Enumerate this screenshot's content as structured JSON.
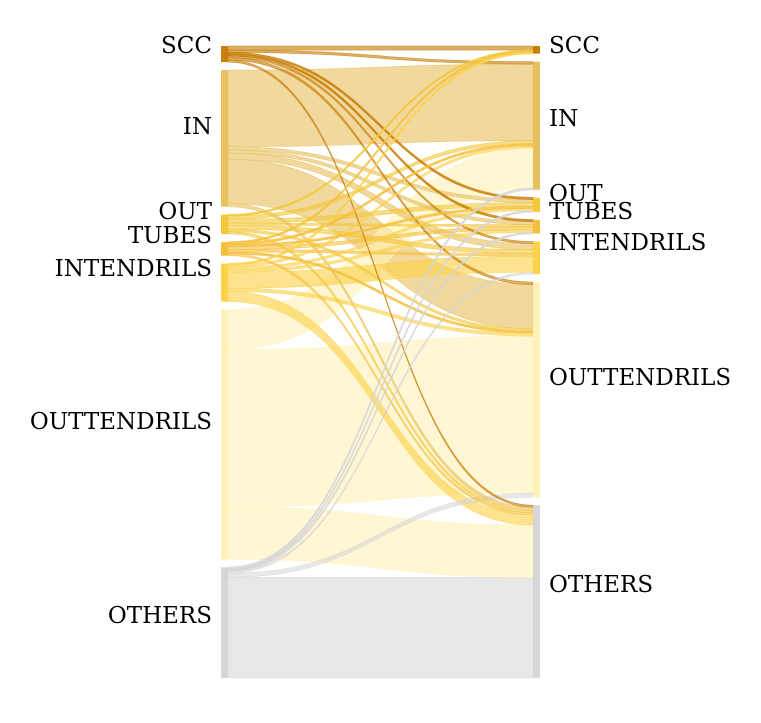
{
  "chart_data": {
    "type": "sankey",
    "title": "",
    "colors": {
      "SCC": "#c8800a",
      "IN": "#e8c060",
      "OUT": "#f2c83a",
      "TUBES": "#f5c040",
      "INTENDRILS": "#fbd24a",
      "OUTTENDRILS": "#fff2b8",
      "OTHERS": "#d6d6d6"
    },
    "left_nodes": [
      {
        "name": "SCC",
        "label": "SCC"
      },
      {
        "name": "IN",
        "label": "IN"
      },
      {
        "name": "OUT",
        "label": "OUT"
      },
      {
        "name": "TUBES",
        "label": "TUBES"
      },
      {
        "name": "INTENDRILS",
        "label": "INTENDRILS"
      },
      {
        "name": "OUTTENDRILS",
        "label": "OUTTENDRILS"
      },
      {
        "name": "OTHERS",
        "label": "OTHERS"
      }
    ],
    "right_nodes": [
      {
        "name": "SCC",
        "label": "SCC"
      },
      {
        "name": "IN",
        "label": "IN"
      },
      {
        "name": "OUT",
        "label": "OUT"
      },
      {
        "name": "TUBES",
        "label": "TUBES"
      },
      {
        "name": "INTENDRILS",
        "label": "INTENDRILS"
      },
      {
        "name": "OUTTENDRILS",
        "label": "OUTTENDRILS"
      },
      {
        "name": "OTHERS",
        "label": "OTHERS"
      }
    ],
    "flows": [
      {
        "source": "SCC",
        "target": "SCC",
        "value": 1.0
      },
      {
        "source": "SCC",
        "target": "IN",
        "value": 0.6
      },
      {
        "source": "SCC",
        "target": "OUT",
        "value": 0.4
      },
      {
        "source": "SCC",
        "target": "TUBES",
        "value": 0.4
      },
      {
        "source": "SCC",
        "target": "INTENDRILS",
        "value": 0.5
      },
      {
        "source": "SCC",
        "target": "OUTTENDRILS",
        "value": 0.6
      },
      {
        "source": "SCC",
        "target": "OTHERS",
        "value": 0.5
      },
      {
        "source": "IN",
        "target": "IN",
        "value": 19
      },
      {
        "source": "IN",
        "target": "OUT",
        "value": 0.8
      },
      {
        "source": "IN",
        "target": "TUBES",
        "value": 0.8
      },
      {
        "source": "IN",
        "target": "INTENDRILS",
        "value": 1.5
      },
      {
        "source": "IN",
        "target": "OUTTENDRILS",
        "value": 11
      },
      {
        "source": "IN",
        "target": "OTHERS",
        "value": 0.8
      },
      {
        "source": "OUT",
        "target": "SCC",
        "value": 0.3
      },
      {
        "source": "OUT",
        "target": "IN",
        "value": 0.8
      },
      {
        "source": "OUT",
        "target": "OUT",
        "value": 1.0
      },
      {
        "source": "OUT",
        "target": "TUBES",
        "value": 0.5
      },
      {
        "source": "OUT",
        "target": "INTENDRILS",
        "value": 1.0
      },
      {
        "source": "OUT",
        "target": "OUTTENDRILS",
        "value": 0.6
      },
      {
        "source": "OUT",
        "target": "OTHERS",
        "value": 0.6
      },
      {
        "source": "TUBES",
        "target": "SCC",
        "value": 0.3
      },
      {
        "source": "TUBES",
        "target": "IN",
        "value": 0.4
      },
      {
        "source": "TUBES",
        "target": "OUT",
        "value": 0.4
      },
      {
        "source": "TUBES",
        "target": "TUBES",
        "value": 0.8
      },
      {
        "source": "TUBES",
        "target": "INTENDRILS",
        "value": 0.6
      },
      {
        "source": "TUBES",
        "target": "OUTTENDRILS",
        "value": 0.4
      },
      {
        "source": "TUBES",
        "target": "OTHERS",
        "value": 0.5
      },
      {
        "source": "INTENDRILS",
        "target": "SCC",
        "value": 0.3
      },
      {
        "source": "INTENDRILS",
        "target": "IN",
        "value": 0.6
      },
      {
        "source": "INTENDRILS",
        "target": "OUT",
        "value": 0.6
      },
      {
        "source": "INTENDRILS",
        "target": "TUBES",
        "value": 0.6
      },
      {
        "source": "INTENDRILS",
        "target": "INTENDRILS",
        "value": 4
      },
      {
        "source": "INTENDRILS",
        "target": "OUTTENDRILS",
        "value": 0.8
      },
      {
        "source": "INTENDRILS",
        "target": "OTHERS",
        "value": 2.5
      },
      {
        "source": "OUTTENDRILS",
        "target": "IN",
        "value": 10
      },
      {
        "source": "OUTTENDRILS",
        "target": "OUTTENDRILS",
        "value": 39
      },
      {
        "source": "OUTTENDRILS",
        "target": "OTHERS",
        "value": 13
      },
      {
        "source": "OTHERS",
        "target": "IN",
        "value": 0.4
      },
      {
        "source": "OTHERS",
        "target": "OUT",
        "value": 0.3
      },
      {
        "source": "OTHERS",
        "target": "TUBES",
        "value": 0.3
      },
      {
        "source": "OTHERS",
        "target": "INTENDRILS",
        "value": 0.5
      },
      {
        "source": "OTHERS",
        "target": "OUTTENDRILS",
        "value": 1.0
      },
      {
        "source": "OTHERS",
        "target": "OTHERS",
        "value": 25
      }
    ]
  }
}
